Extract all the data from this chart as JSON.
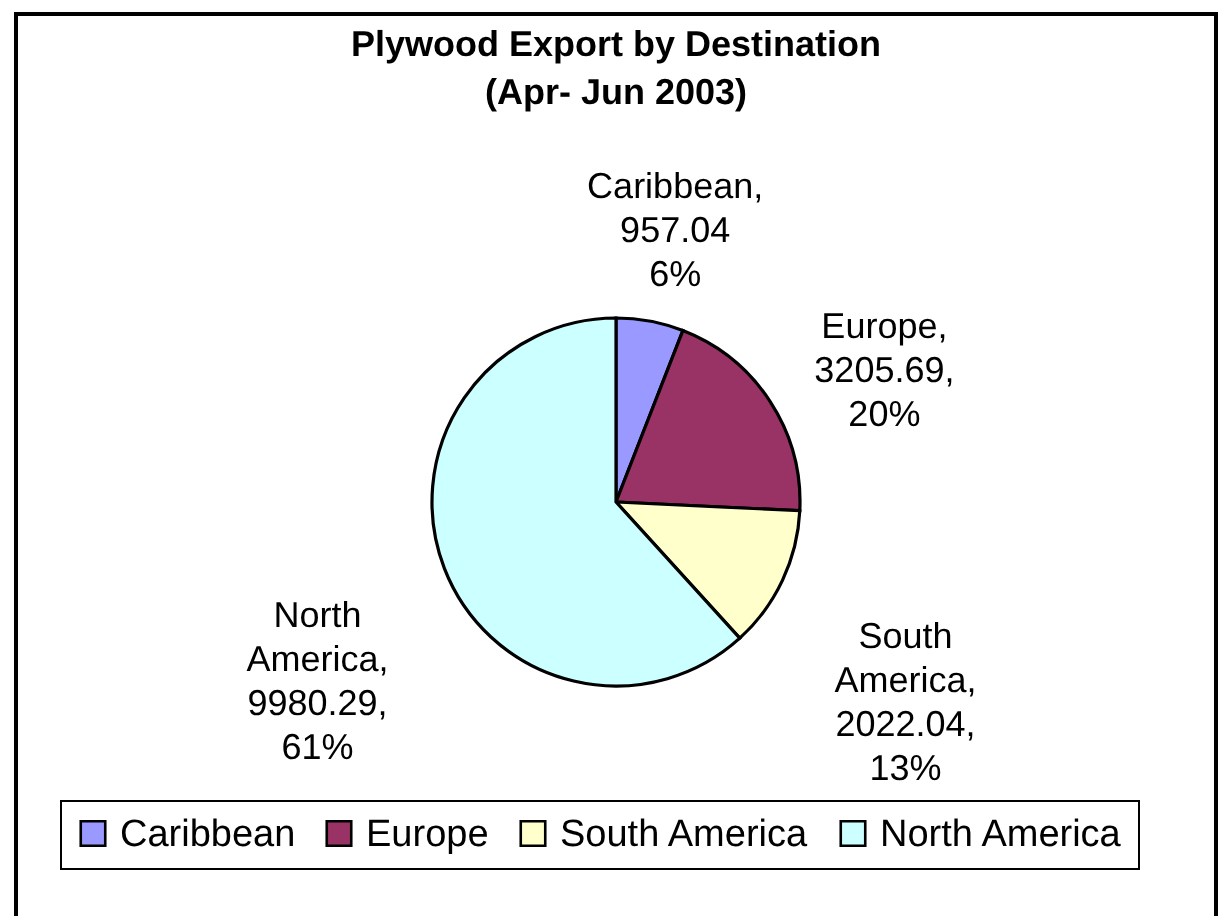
{
  "chart_data": {
    "type": "pie",
    "title": "Plywood Export by Destination\n(Apr- Jun 2003)",
    "categories": [
      "Caribbean",
      "Europe",
      "South America",
      "North America"
    ],
    "values": [
      957.04,
      3205.69,
      2022.04,
      9980.29
    ],
    "colors": [
      "#9999ff",
      "#993366",
      "#ffffcc",
      "#ccffff"
    ],
    "value_labels": [
      "Caribbean,\n957.04\n6%",
      "Europe,\n3205.69,\n20%",
      "South\nAmerica,\n2022.04,\n13%",
      "North\nAmerica,\n9980.29,\n61%"
    ],
    "legend": "bottom"
  }
}
